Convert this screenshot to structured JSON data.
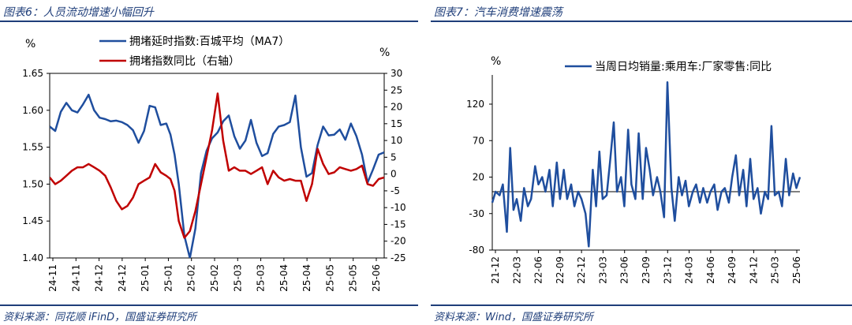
{
  "left_panel": {
    "title": "图表6：人员流动增速小幅回升",
    "source": "资料来源：同花顺 iFinD，国盛证券研究所"
  },
  "right_panel": {
    "title": "图表7：汽车消费增速震荡",
    "source": "资料来源：Wind，国盛证券研究所"
  },
  "colors": {
    "navy": "#1f3e7a",
    "blue": "#1f4e9e",
    "red": "#c00000"
  },
  "chart_data": [
    {
      "type": "line",
      "left_unit": "%",
      "right_unit": "%",
      "y_left_range": [
        1.4,
        1.65
      ],
      "y_left_ticks": [
        "1.40",
        "1.45",
        "1.50",
        "1.55",
        "1.60",
        "1.65"
      ],
      "y_right_range": [
        -25,
        30
      ],
      "y_right_ticks": [
        "-25",
        "-20",
        "-15",
        "-10",
        "-5",
        "0",
        "5",
        "10",
        "15",
        "20",
        "25",
        "30"
      ],
      "x_range": [
        "2024-11-01",
        "2025-06-30"
      ],
      "x_ticks": [
        "24-11",
        "24-11",
        "24-12",
        "24-12",
        "25-01",
        "25-01",
        "25-02",
        "25-02",
        "25-03",
        "25-03",
        "25-04",
        "25-04",
        "25-05",
        "25-05",
        "25-06"
      ],
      "legend_position": "top",
      "series": [
        {
          "name": "拥堵延时指数:百城平均（MA7）",
          "axis": "left",
          "color": "#1f4e9e",
          "x": [
            "2024-11-01",
            "2024-11-05",
            "2024-11-09",
            "2024-11-13",
            "2024-11-17",
            "2024-11-21",
            "2024-11-25",
            "2024-11-29",
            "2024-12-03",
            "2024-12-07",
            "2024-12-11",
            "2024-12-15",
            "2024-12-19",
            "2024-12-23",
            "2024-12-27",
            "2024-12-31",
            "2025-01-04",
            "2025-01-08",
            "2025-01-12",
            "2025-01-16",
            "2025-01-20",
            "2025-01-24",
            "2025-01-27",
            "2025-01-30",
            "2025-02-02",
            "2025-02-06",
            "2025-02-10",
            "2025-02-14",
            "2025-02-18",
            "2025-02-22",
            "2025-02-26",
            "2025-03-02",
            "2025-03-06",
            "2025-03-10",
            "2025-03-14",
            "2025-03-18",
            "2025-03-22",
            "2025-03-26",
            "2025-03-30",
            "2025-04-03",
            "2025-04-07",
            "2025-04-11",
            "2025-04-15",
            "2025-04-19",
            "2025-04-23",
            "2025-04-27",
            "2025-05-01",
            "2025-05-05",
            "2025-05-09",
            "2025-05-13",
            "2025-05-17",
            "2025-05-21",
            "2025-05-25",
            "2025-05-29",
            "2025-06-02",
            "2025-06-06",
            "2025-06-10",
            "2025-06-14",
            "2025-06-18",
            "2025-06-22",
            "2025-06-26",
            "2025-06-30"
          ],
          "values": [
            1.578,
            1.572,
            1.598,
            1.61,
            1.6,
            1.597,
            1.608,
            1.621,
            1.6,
            1.59,
            1.588,
            1.585,
            1.586,
            1.584,
            1.58,
            1.573,
            1.556,
            1.572,
            1.606,
            1.604,
            1.58,
            1.582,
            1.567,
            1.54,
            1.5,
            1.43,
            1.4,
            1.44,
            1.515,
            1.545,
            1.562,
            1.57,
            1.585,
            1.593,
            1.565,
            1.548,
            1.559,
            1.587,
            1.556,
            1.538,
            1.542,
            1.568,
            1.578,
            1.58,
            1.584,
            1.62,
            1.55,
            1.51,
            1.515,
            1.553,
            1.578,
            1.566,
            1.567,
            1.574,
            1.56,
            1.582,
            1.565,
            1.54,
            1.502,
            1.52,
            1.54,
            1.543
          ]
        },
        {
          "name": "拥堵指数同比（右轴）",
          "axis": "right",
          "color": "#c00000",
          "x": [
            "2024-11-01",
            "2024-11-05",
            "2024-11-09",
            "2024-11-13",
            "2024-11-17",
            "2024-11-21",
            "2024-11-25",
            "2024-11-29",
            "2024-12-03",
            "2024-12-07",
            "2024-12-11",
            "2024-12-15",
            "2024-12-19",
            "2024-12-23",
            "2024-12-27",
            "2024-12-31",
            "2025-01-04",
            "2025-01-08",
            "2025-01-12",
            "2025-01-16",
            "2025-01-20",
            "2025-01-24",
            "2025-01-27",
            "2025-01-30",
            "2025-02-02",
            "2025-02-06",
            "2025-02-10",
            "2025-02-14",
            "2025-02-18",
            "2025-02-22",
            "2025-02-26",
            "2025-03-02",
            "2025-03-06",
            "2025-03-10",
            "2025-03-14",
            "2025-03-18",
            "2025-03-22",
            "2025-03-26",
            "2025-03-30",
            "2025-04-03",
            "2025-04-07",
            "2025-04-11",
            "2025-04-15",
            "2025-04-19",
            "2025-04-23",
            "2025-04-27",
            "2025-05-01",
            "2025-05-05",
            "2025-05-09",
            "2025-05-13",
            "2025-05-17",
            "2025-05-21",
            "2025-05-25",
            "2025-05-29",
            "2025-06-02",
            "2025-06-06",
            "2025-06-10",
            "2025-06-14",
            "2025-06-18",
            "2025-06-22",
            "2025-06-26",
            "2025-06-30"
          ],
          "values": [
            -1.0,
            -3.0,
            -2.0,
            -0.5,
            1.0,
            2.0,
            2.0,
            3.0,
            2.0,
            1.0,
            -0.5,
            -4.0,
            -8.0,
            -10.5,
            -9.5,
            -7.0,
            -3.0,
            -2.0,
            -1.0,
            3.0,
            0.5,
            -0.5,
            -1.5,
            -5.0,
            -14.0,
            -19.0,
            -17.0,
            -11.0,
            -3.0,
            5.0,
            13.0,
            24.0,
            10.0,
            1.0,
            2.0,
            1.0,
            1.0,
            0.0,
            1.0,
            2.0,
            -3.0,
            1.0,
            -1.0,
            -2.0,
            -1.5,
            -2.0,
            -2.0,
            -8.0,
            -3.0,
            7.5,
            3.0,
            0.0,
            0.5,
            2.0,
            1.5,
            1.0,
            1.5,
            2.5,
            -3.0,
            -3.5,
            -1.5,
            -1.0
          ]
        }
      ]
    },
    {
      "type": "line",
      "unit": "%",
      "y_range": [
        -80,
        160
      ],
      "y_ticks": [
        "-80",
        "-30",
        "20",
        "70",
        "120"
      ],
      "x_range": [
        "2021-12-01",
        "2025-06-30"
      ],
      "x_ticks": [
        "21-12",
        "22-03",
        "22-06",
        "22-09",
        "22-12",
        "23-03",
        "23-06",
        "23-09",
        "23-12",
        "24-03",
        "24-06",
        "24-09",
        "24-12",
        "25-03",
        "25-06"
      ],
      "legend_position": "top",
      "series": [
        {
          "name": "当周日均销量:乘用车:厂家零售:同比",
          "color": "#1f4e9e",
          "x": [
            "2021-12-01",
            "2021-12-15",
            "2022-01-01",
            "2022-01-15",
            "2022-02-01",
            "2022-02-15",
            "2022-03-01",
            "2022-03-15",
            "2022-04-01",
            "2022-04-15",
            "2022-05-01",
            "2022-05-15",
            "2022-06-01",
            "2022-06-15",
            "2022-07-01",
            "2022-07-15",
            "2022-08-01",
            "2022-08-15",
            "2022-09-01",
            "2022-09-15",
            "2022-10-01",
            "2022-10-15",
            "2022-11-01",
            "2022-11-15",
            "2022-12-01",
            "2022-12-15",
            "2023-01-01",
            "2023-01-15",
            "2023-02-01",
            "2023-02-15",
            "2023-03-01",
            "2023-03-15",
            "2023-04-01",
            "2023-04-15",
            "2023-05-01",
            "2023-05-15",
            "2023-06-01",
            "2023-06-15",
            "2023-07-01",
            "2023-07-15",
            "2023-08-01",
            "2023-08-15",
            "2023-09-01",
            "2023-09-15",
            "2023-10-01",
            "2023-10-15",
            "2023-11-01",
            "2023-11-15",
            "2023-12-01",
            "2023-12-15",
            "2024-01-01",
            "2024-01-15",
            "2024-02-01",
            "2024-02-15",
            "2024-03-01",
            "2024-03-15",
            "2024-04-01",
            "2024-04-15",
            "2024-05-01",
            "2024-05-15",
            "2024-06-01",
            "2024-06-15",
            "2024-07-01",
            "2024-07-15",
            "2024-08-01",
            "2024-08-15",
            "2024-09-01",
            "2024-09-15",
            "2024-10-01",
            "2024-10-15",
            "2024-11-01",
            "2024-11-15",
            "2024-12-01",
            "2024-12-15",
            "2025-01-01",
            "2025-01-15",
            "2025-02-01",
            "2025-02-15",
            "2025-03-01",
            "2025-03-15",
            "2025-04-01",
            "2025-04-15",
            "2025-05-01",
            "2025-05-15",
            "2025-06-01",
            "2025-06-15",
            "2025-06-30"
          ],
          "values": [
            -15,
            0,
            -5,
            10,
            -55,
            60,
            -25,
            -10,
            -40,
            5,
            -20,
            -10,
            35,
            10,
            20,
            0,
            30,
            -20,
            40,
            -10,
            30,
            -10,
            10,
            -20,
            0,
            -10,
            -30,
            -75,
            30,
            -20,
            55,
            -10,
            -5,
            40,
            95,
            0,
            20,
            -20,
            85,
            10,
            -10,
            80,
            -10,
            60,
            30,
            -5,
            20,
            0,
            -35,
            150,
            5,
            -40,
            20,
            -5,
            15,
            -20,
            0,
            10,
            -15,
            5,
            -15,
            0,
            10,
            -25,
            0,
            5,
            -15,
            20,
            50,
            -5,
            30,
            -20,
            45,
            -10,
            5,
            -30,
            0,
            -10,
            90,
            -5,
            0,
            -20,
            45,
            -5,
            25,
            5,
            20
          ]
        }
      ]
    }
  ]
}
